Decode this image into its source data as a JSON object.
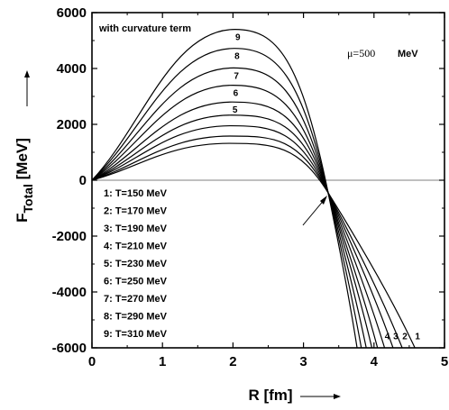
{
  "chart_data": {
    "type": "line",
    "xlabel": "R [fm]",
    "ylabel_main": "F",
    "ylabel_sub": "Total",
    "ylabel_unit": "[MeV]",
    "xlim": [
      0,
      5
    ],
    "ylim": [
      -6000,
      6000
    ],
    "x_ticks": [
      "0",
      "1",
      "2",
      "3",
      "4",
      "5"
    ],
    "y_ticks": [
      "6000",
      "4000",
      "2000",
      "0",
      "-2000",
      "-4000",
      "-6000"
    ],
    "annotation_top_left": "with curvature term",
    "annotation_mu": "μ=500",
    "annotation_mu_unit": "MeV",
    "crossing_point": {
      "x": 3.35,
      "y": -450
    },
    "legend": [
      "1: T=150 MeV",
      "2: T=170 MeV",
      "3: T=190 MeV",
      "4: T=210 MeV",
      "5: T=230 MeV",
      "6: T=250 MeV",
      "7: T=270 MeV",
      "8: T=290 MeV",
      "9: T=310 MeV"
    ],
    "series": [
      {
        "name": "1",
        "peak_x": 1.95,
        "peak_y": 1320,
        "end_x": 4.58,
        "end_y": -6000,
        "top_label": "",
        "bottom_label": "1"
      },
      {
        "name": "2",
        "peak_x": 1.96,
        "peak_y": 1580,
        "end_x": 4.4,
        "end_y": -6000,
        "top_label": "",
        "bottom_label": "2"
      },
      {
        "name": "3",
        "peak_x": 1.97,
        "peak_y": 1950,
        "end_x": 4.27,
        "end_y": -6000,
        "top_label": "",
        "bottom_label": "3"
      },
      {
        "name": "4",
        "peak_x": 1.98,
        "peak_y": 2330,
        "end_x": 4.15,
        "end_y": -6000,
        "top_label": "",
        "bottom_label": "4"
      },
      {
        "name": "5",
        "peak_x": 1.99,
        "peak_y": 2800,
        "end_x": 4.05,
        "end_y": -6000,
        "top_label": "5",
        "bottom_label": ""
      },
      {
        "name": "6",
        "peak_x": 2.0,
        "peak_y": 3400,
        "end_x": 3.97,
        "end_y": -6000,
        "top_label": "6",
        "bottom_label": ""
      },
      {
        "name": "7",
        "peak_x": 2.01,
        "peak_y": 4020,
        "end_x": 3.89,
        "end_y": -6000,
        "top_label": "7",
        "bottom_label": ""
      },
      {
        "name": "8",
        "peak_x": 2.02,
        "peak_y": 4720,
        "end_x": 3.82,
        "end_y": -6000,
        "top_label": "8",
        "bottom_label": ""
      },
      {
        "name": "9",
        "peak_x": 2.03,
        "peak_y": 5400,
        "end_x": 3.76,
        "end_y": -6000,
        "top_label": "9",
        "bottom_label": ""
      }
    ],
    "grid": false
  }
}
